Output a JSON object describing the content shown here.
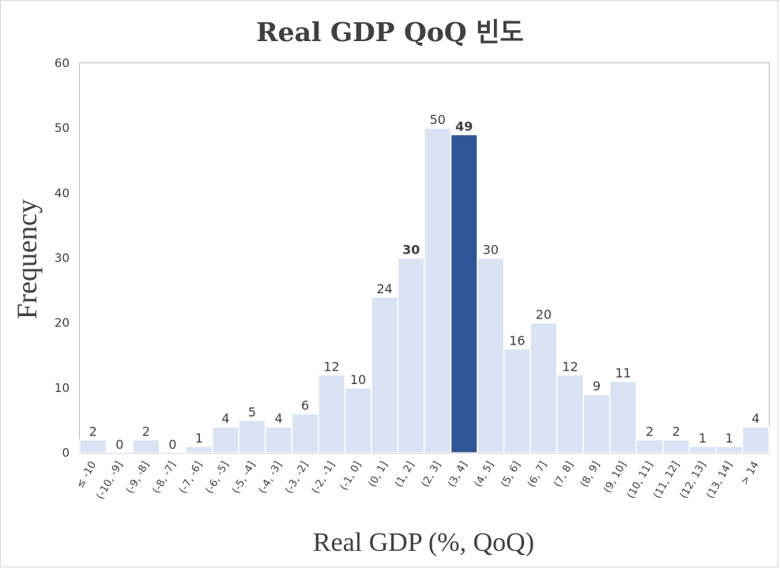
{
  "chart_data": {
    "type": "bar",
    "title": "Real GDP QoQ 빈도",
    "xlabel": "Real GDP (%, QoQ)",
    "ylabel": "Frequency",
    "ylim": [
      0,
      60
    ],
    "yticks": [
      "0",
      "10",
      "20",
      "30",
      "40",
      "50",
      "60"
    ],
    "grid": false,
    "categories": [
      "≤ -10",
      "(-10, -9]",
      "(-9, -8]",
      "(-8, -7]",
      "(-7, -6]",
      "(-6, -5]",
      "(-5, -4]",
      "(-4, -3]",
      "(-3, -2]",
      "(-2, -1]",
      "(-1, 0]",
      "(0, 1]",
      "(1, 2]",
      "(2, 3]",
      "(3, 4]",
      "(4, 5]",
      "(5, 6]",
      "(6, 7]",
      "(7, 8]",
      "(8, 9]",
      "(9, 10]",
      "(10, 11]",
      "(11, 12]",
      "(12, 13]",
      "(13, 14]",
      "> 14"
    ],
    "values": [
      2,
      0,
      2,
      0,
      1,
      4,
      5,
      4,
      6,
      12,
      10,
      24,
      30,
      50,
      49,
      30,
      16,
      20,
      12,
      9,
      11,
      2,
      2,
      1,
      1,
      4
    ],
    "highlight_index": 14,
    "bold_label_indices": [
      12,
      14
    ],
    "colors": {
      "bar": "#dae3f3",
      "highlight": "#2f5597",
      "bar_edge": "#ffffff",
      "plot_border": "#bfbfbf",
      "text": "#404040"
    }
  }
}
